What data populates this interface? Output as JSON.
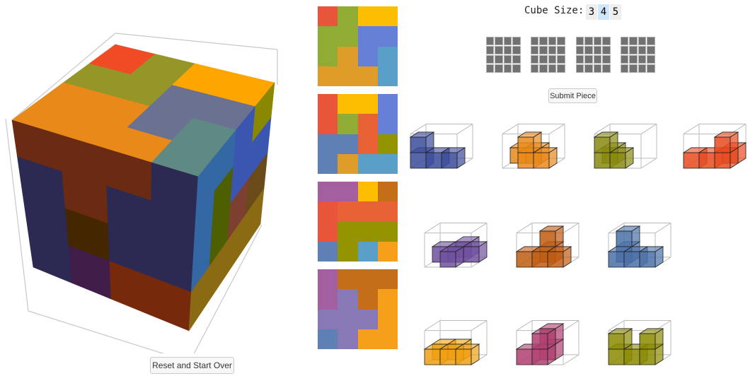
{
  "controls": {
    "cube_size_label": "Cube Size:",
    "size_options": [
      "3",
      "4",
      "5"
    ],
    "selected_size": "4",
    "submit_label": "Submit Piece",
    "reset_label": "Reset and Start Over"
  },
  "palette": {
    "red": "#e8553a",
    "green": "#8fad35",
    "yellow": "#fdbd00",
    "blue": "#6680d8",
    "orange": "#e09c28",
    "lblue": "#5a9fc8",
    "red2": "#e86236",
    "steel": "#5e80b5",
    "olive": "#949400",
    "purple": "#a35fa0",
    "brown": "#c46e1a",
    "amber": "#f59f1a",
    "violet": "#8878b5"
  },
  "slices": [
    [
      [
        "red",
        "green",
        "yellow",
        "yellow"
      ],
      [
        "green",
        "green",
        "blue",
        "blue"
      ],
      [
        "green",
        "orange",
        "blue",
        "lblue"
      ],
      [
        "orange",
        "orange",
        "orange",
        "lblue"
      ]
    ],
    [
      [
        "red",
        "yellow",
        "yellow",
        "blue"
      ],
      [
        "red",
        "green",
        "red2",
        "blue"
      ],
      [
        "steel",
        "steel",
        "red2",
        "olive"
      ],
      [
        "steel",
        "orange",
        "lblue",
        "lblue"
      ]
    ],
    [
      [
        "purple",
        "purple",
        "yellow",
        "brown"
      ],
      [
        "red",
        "red2",
        "red2",
        "red2"
      ],
      [
        "red",
        "olive",
        "olive",
        "olive"
      ],
      [
        "steel",
        "olive",
        "lblue",
        "amber"
      ]
    ],
    [
      [
        "purple",
        "brown",
        "brown",
        "brown"
      ],
      [
        "purple",
        "violet",
        "brown",
        "amber"
      ],
      [
        "violet",
        "violet",
        "violet",
        "amber"
      ],
      [
        "steel",
        "violet",
        "amber",
        "amber"
      ]
    ]
  ],
  "big_cube": {
    "top": [
      [
        "#e8891a",
        "#e8891a",
        "#e8891a",
        "#5f8a84"
      ],
      [
        "#e8891a",
        "#e8891a",
        "#6b7190",
        "#5f8a84"
      ],
      [
        "#969628",
        "#969628",
        "#6b7190",
        "#6b7190"
      ],
      [
        "#f04b25",
        "#969628",
        "#fea500",
        "#fea500"
      ]
    ],
    "front": [
      [
        "#6b2a12",
        "#6b2a12",
        "#6b2a12",
        "#2c2a52"
      ],
      [
        "#2c2a52",
        "#6b2a12",
        "#2c2a52",
        "#2c2a52"
      ],
      [
        "#2c2a52",
        "#442600",
        "#2c2a52",
        "#2c2a52"
      ],
      [
        "#2c2a52",
        "#411d4a",
        "#772a0b",
        "#772a0b"
      ]
    ],
    "right": [
      [
        "#3368a5",
        "#3368a5",
        "#3a56b1",
        "#8a8700"
      ],
      [
        "#3368a5",
        "#4d5f00",
        "#3a56b1",
        "#3a56b1"
      ],
      [
        "#3368a5",
        "#4d5f00",
        "#7d4030",
        "#6a4a18"
      ],
      [
        "#8a6a12",
        "#8a6a12",
        "#8a6a12",
        "#8a6a12"
      ]
    ]
  },
  "pieces": [
    {
      "color": "#3a4a9a",
      "cubes": [
        [
          0,
          0,
          0
        ],
        [
          1,
          0,
          0
        ],
        [
          2,
          0,
          0
        ],
        [
          0,
          0,
          1
        ]
      ]
    },
    {
      "color": "#e8891a",
      "cubes": [
        [
          0,
          1,
          0
        ],
        [
          1,
          1,
          0
        ],
        [
          1,
          0,
          0
        ],
        [
          2,
          0,
          0
        ],
        [
          1,
          0,
          1
        ]
      ]
    },
    {
      "color": "#8a8a10",
      "cubes": [
        [
          0,
          1,
          0
        ],
        [
          0,
          0,
          0
        ],
        [
          1,
          0,
          0
        ],
        [
          0,
          0,
          1
        ]
      ]
    },
    {
      "color": "#e84a1f",
      "cubes": [
        [
          2,
          1,
          0
        ],
        [
          0,
          0,
          0
        ],
        [
          1,
          0,
          0
        ],
        [
          2,
          0,
          0
        ],
        [
          2,
          0,
          1
        ]
      ]
    },
    {
      "color": "#7050a0",
      "cubes": [
        [
          1,
          2,
          0
        ],
        [
          0,
          1,
          0
        ],
        [
          1,
          1,
          0
        ],
        [
          2,
          1,
          0
        ],
        [
          1,
          0,
          0
        ]
      ]
    },
    {
      "color": "#c05a10",
      "cubes": [
        [
          1,
          1,
          0
        ],
        [
          0,
          0,
          0
        ],
        [
          1,
          0,
          0
        ],
        [
          2,
          0,
          0
        ],
        [
          1,
          1,
          1
        ]
      ]
    },
    {
      "color": "#4a70a8",
      "cubes": [
        [
          0,
          1,
          0
        ],
        [
          0,
          1,
          1
        ],
        [
          0,
          0,
          0
        ],
        [
          1,
          0,
          0
        ],
        [
          2,
          0,
          0
        ]
      ]
    },
    {
      "color": "#f0a010",
      "cubes": [
        [
          0,
          1,
          0
        ],
        [
          1,
          1,
          0
        ],
        [
          0,
          0,
          0
        ],
        [
          1,
          0,
          0
        ],
        [
          2,
          0,
          0
        ]
      ]
    },
    {
      "color": "#b04070",
      "cubes": [
        [
          1,
          1,
          1
        ],
        [
          1,
          1,
          0
        ],
        [
          0,
          0,
          0
        ],
        [
          1,
          0,
          0
        ],
        [
          1,
          0,
          1
        ]
      ]
    },
    {
      "color": "#8a8a00",
      "cubes": [
        [
          0,
          0,
          0
        ],
        [
          1,
          0,
          0
        ],
        [
          2,
          0,
          0
        ],
        [
          0,
          0,
          1
        ],
        [
          2,
          0,
          1
        ]
      ]
    }
  ]
}
